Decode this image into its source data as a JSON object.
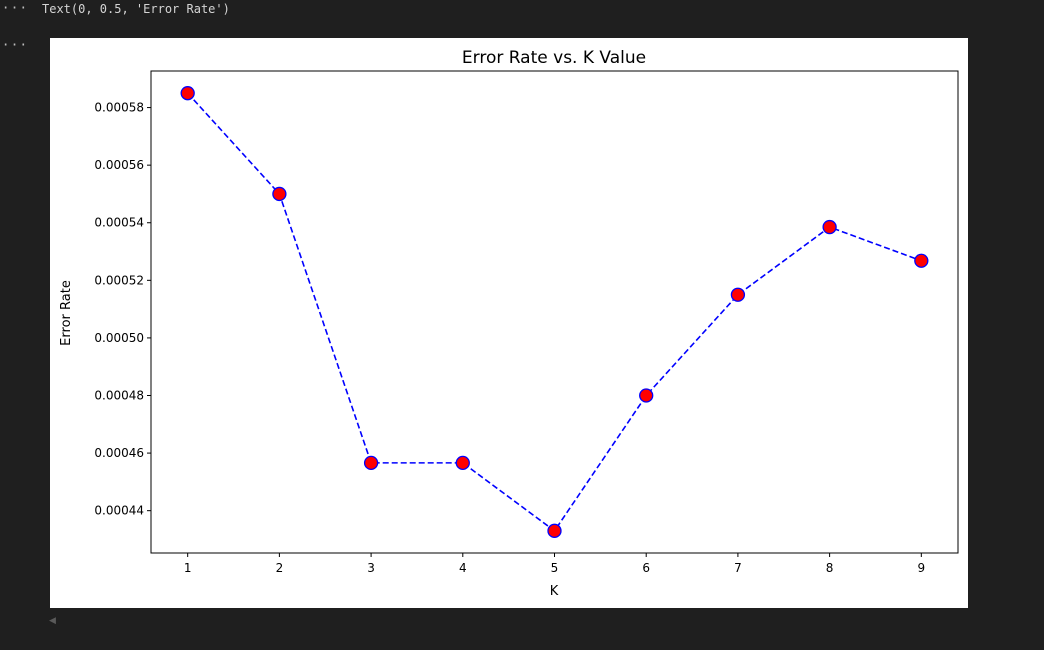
{
  "cell": {
    "gutter_label_1": "···",
    "gutter_label_2": "···",
    "output_text": "Text(0, 0.5, 'Error Rate')"
  },
  "chart_data": {
    "type": "line",
    "title": "Error Rate vs. K Value",
    "xlabel": "K",
    "ylabel": "Error Rate",
    "x": [
      1,
      2,
      3,
      4,
      5,
      6,
      7,
      8,
      9
    ],
    "series": [
      {
        "values": [
          0.000585,
          0.00055,
          0.0004566,
          0.0004566,
          0.000433,
          0.00048,
          0.000515,
          0.0005385,
          0.0005268
        ],
        "line_color": "#0000ff",
        "line_style": "dashed",
        "marker": "circle",
        "marker_face_color": "#ff0000",
        "marker_edge_color": "#0000ff"
      }
    ],
    "xticks": [
      "1",
      "2",
      "3",
      "4",
      "5",
      "6",
      "7",
      "8",
      "9"
    ],
    "yticks": [
      "0.00044",
      "0.00046",
      "0.00048",
      "0.00050",
      "0.00052",
      "0.00054",
      "0.00056",
      "0.00058"
    ],
    "xlim": [
      0.6,
      9.4
    ],
    "ylim": [
      0.0004253,
      0.0005927
    ],
    "grid": false
  }
}
